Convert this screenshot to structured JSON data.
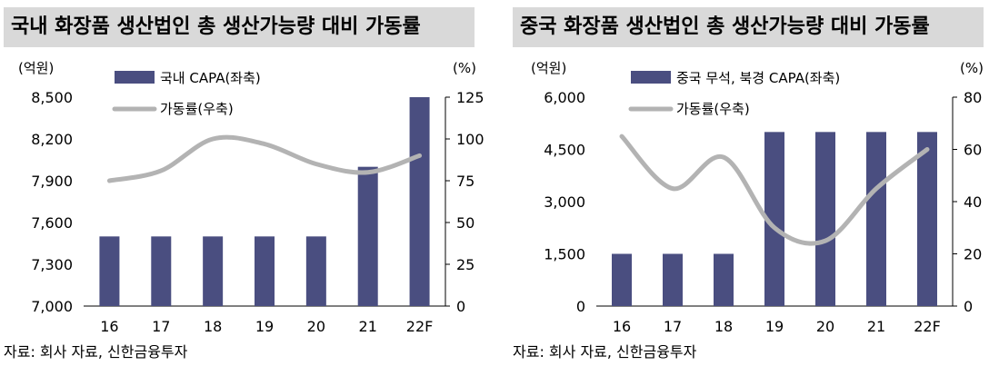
{
  "charts": [
    {
      "title": "국내 화장품 생산법인 총 생산가능량 대비 가동률",
      "source": "자료: 회사 자료, 신한금융투자",
      "chart_data": {
        "type": "bar+line",
        "categories": [
          "16",
          "17",
          "18",
          "19",
          "20",
          "21",
          "22F"
        ],
        "left_unit": "(억원)",
        "right_unit": "(%)",
        "left_axis": {
          "min": 7000,
          "max": 8500,
          "ticks": [
            "7,000",
            "7,300",
            "7,600",
            "7,900",
            "8,200",
            "8,500"
          ],
          "tick_values": [
            7000,
            7300,
            7600,
            7900,
            8200,
            8500
          ]
        },
        "right_axis": {
          "min": 0,
          "max": 125,
          "ticks": [
            "0",
            "25",
            "50",
            "75",
            "100",
            "125"
          ],
          "tick_values": [
            0,
            25,
            50,
            75,
            100,
            125
          ]
        },
        "bar_series": {
          "name": "국내 CAPA(좌축)",
          "values": [
            7500,
            7500,
            7500,
            7500,
            7500,
            8000,
            8500
          ],
          "color": "#4a4e80"
        },
        "line_series": {
          "name": "가동률(우축)",
          "values": [
            75,
            81,
            100,
            97,
            85,
            80,
            90
          ],
          "color": "#b3b3b3"
        }
      }
    },
    {
      "title": "중국 화장품 생산법인 총 생산가능량 대비 가동률",
      "source": "자료: 회사 자료, 신한금융투자",
      "chart_data": {
        "type": "bar+line",
        "categories": [
          "16",
          "17",
          "18",
          "19",
          "20",
          "21",
          "22F"
        ],
        "left_unit": "(억원)",
        "right_unit": "(%)",
        "left_axis": {
          "min": 0,
          "max": 6000,
          "ticks": [
            "0",
            "1,500",
            "3,000",
            "4,500",
            "6,000"
          ],
          "tick_values": [
            0,
            1500,
            3000,
            4500,
            6000
          ]
        },
        "right_axis": {
          "min": 0,
          "max": 80,
          "ticks": [
            "0",
            "20",
            "40",
            "60",
            "80"
          ],
          "tick_values": [
            0,
            20,
            40,
            60,
            80
          ]
        },
        "bar_series": {
          "name": "중국 무석, 북경 CAPA(좌축)",
          "values": [
            1500,
            1500,
            1500,
            5000,
            5000,
            5000,
            5000
          ],
          "color": "#4a4e80"
        },
        "line_series": {
          "name": "가동률(우축)",
          "values": [
            65,
            45,
            57,
            30,
            25,
            45,
            60
          ],
          "color": "#b3b3b3"
        }
      }
    }
  ]
}
